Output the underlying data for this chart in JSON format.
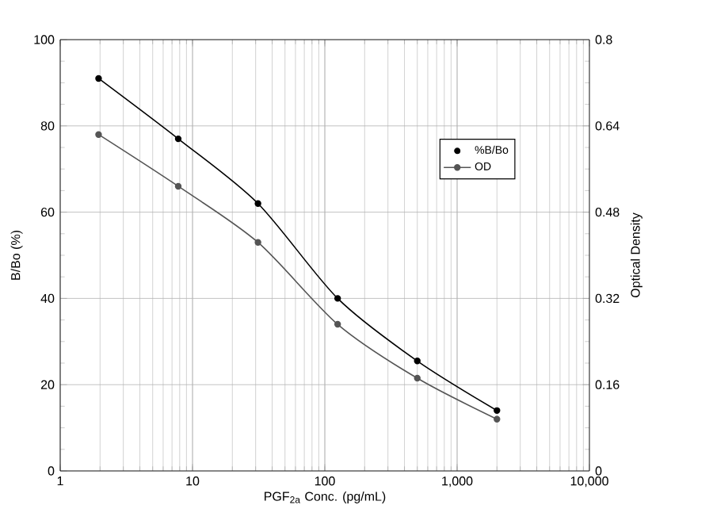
{
  "chart_data": {
    "type": "line",
    "xlabel": "PGF$_{2a}$ Conc. (pg/mL)",
    "ylabel": "B/Bo (%)",
    "y2label": "Optical Density",
    "x": [
      1.95,
      7.8,
      31.25,
      125,
      500,
      2000
    ],
    "series": [
      {
        "name": "%B/Bo",
        "color": "#000000",
        "values": [
          91,
          77,
          62,
          40,
          25.5,
          14
        ]
      },
      {
        "name": "OD",
        "color": "#555555",
        "axis": "y2",
        "values": [
          0.624,
          0.528,
          0.424,
          0.272,
          0.172,
          0.096
        ]
      }
    ],
    "log": "x",
    "grid": true,
    "legend": "top right",
    "marker": "circle",
    "line_style": "solid",
    "xlim": [
      1,
      10000
    ],
    "xticks": [
      1,
      10,
      100,
      {
        "value": 1000,
        "label": "1,000"
      },
      {
        "value": 10000,
        "label": "10,000"
      }
    ],
    "ylim": [
      0,
      100
    ],
    "yticks": [
      0,
      20,
      40,
      60,
      80,
      100
    ],
    "y2lim": [
      0,
      0.8
    ],
    "y2ticks": [
      0,
      0.16,
      0.32,
      0.48,
      0.64,
      0.8
    ]
  }
}
